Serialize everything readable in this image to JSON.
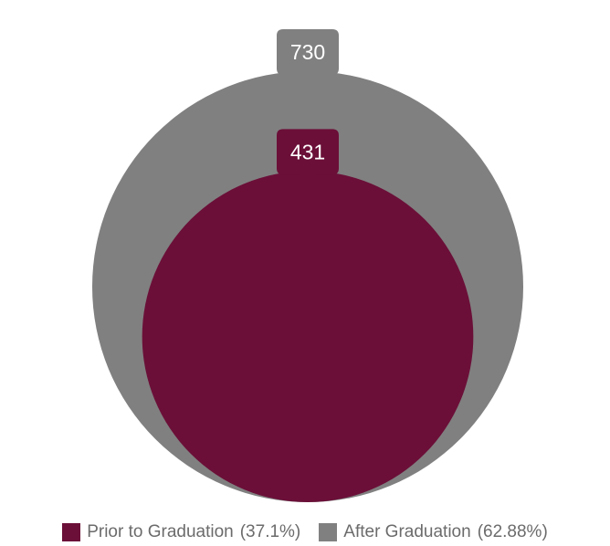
{
  "chart_data": {
    "type": "bubble",
    "title": "",
    "series": [
      {
        "name": "Prior to Graduation",
        "percent_label": "(37.1%)",
        "value": 431,
        "color": "#6b0f38"
      },
      {
        "name": "After Graduation",
        "percent_label": "(62.88%)",
        "value": 730,
        "color": "#808080"
      }
    ],
    "legend_position": "bottom",
    "grid": false
  }
}
